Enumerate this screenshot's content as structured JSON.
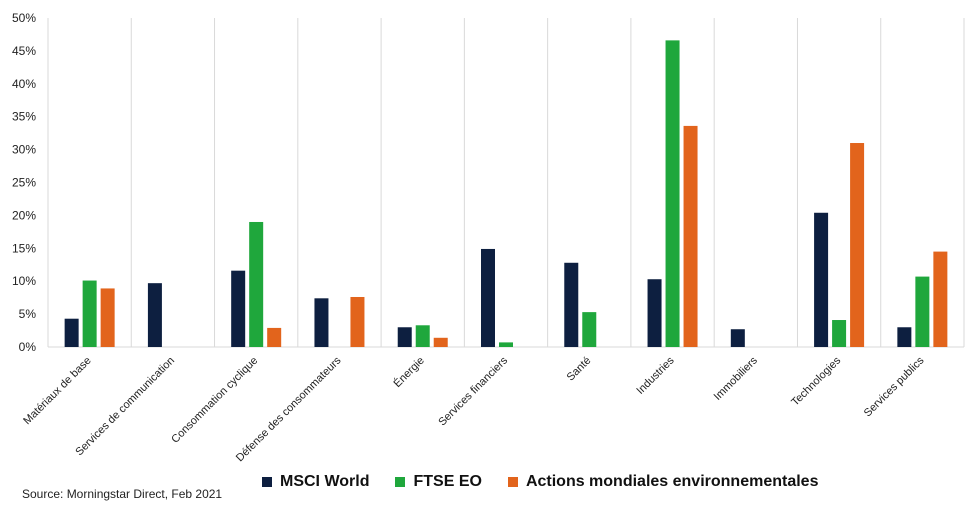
{
  "chart_data": {
    "type": "bar",
    "categories": [
      "Matériaux de base",
      "Services de communication",
      "Consommation cyclique",
      "Défense des consommateurs",
      "Énergie",
      "Services financiers",
      "Santé",
      "Industries",
      "Immobiliers",
      "Technologies",
      "Services publics"
    ],
    "series": [
      {
        "name": "MSCI World",
        "color": "#0d1f40",
        "values": [
          4.3,
          9.7,
          11.6,
          7.4,
          3.0,
          14.9,
          12.8,
          10.3,
          2.7,
          20.4,
          3.0
        ]
      },
      {
        "name": "FTSE EO",
        "color": "#1fa73c",
        "values": [
          10.1,
          0,
          19.0,
          0,
          3.3,
          0.7,
          5.3,
          46.6,
          0,
          4.1,
          10.7
        ]
      },
      {
        "name": "Actions mondiales environnementales",
        "color": "#e2641c",
        "values": [
          8.9,
          0,
          2.9,
          7.6,
          1.4,
          0,
          0,
          33.6,
          0,
          31.0,
          14.5
        ]
      }
    ],
    "yticks": [
      "0%",
      "5%",
      "10%",
      "15%",
      "20%",
      "25%",
      "30%",
      "35%",
      "40%",
      "45%",
      "50%"
    ],
    "ylim": [
      0,
      50
    ],
    "grid": "vertical separators",
    "legend_position": "bottom"
  },
  "legend": {
    "items": [
      {
        "label": "MSCI World",
        "color": "#0d1f40"
      },
      {
        "label": "FTSE EO",
        "color": "#1fa73c"
      },
      {
        "label": "Actions mondiales environnementales",
        "color": "#e2641c"
      }
    ]
  },
  "source": "Source: Morningstar Direct, Feb 2021"
}
